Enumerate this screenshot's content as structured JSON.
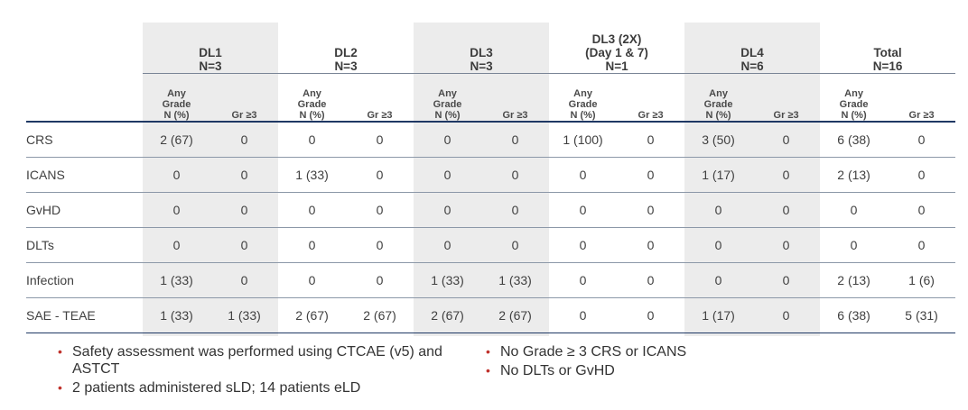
{
  "groups": [
    {
      "lines": [
        "DL1",
        "N=3"
      ]
    },
    {
      "lines": [
        "DL2",
        "N=3"
      ]
    },
    {
      "lines": [
        "DL3",
        "N=3"
      ]
    },
    {
      "lines": [
        "DL3 (2X)",
        "(Day 1 & 7)",
        "N=1"
      ]
    },
    {
      "lines": [
        "DL4",
        "N=6"
      ]
    },
    {
      "lines": [
        "Total",
        "N=16"
      ]
    }
  ],
  "subheaders": {
    "any_grade_lines": [
      "Any",
      "Grade",
      "N (%)"
    ],
    "gr3": "Gr ≥3"
  },
  "rows": [
    {
      "label": "CRS",
      "cells": [
        "2 (67)",
        "0",
        "0",
        "0",
        "0",
        "0",
        "1 (100)",
        "0",
        "3 (50)",
        "0",
        "6 (38)",
        "0"
      ]
    },
    {
      "label": "ICANS",
      "cells": [
        "0",
        "0",
        "1 (33)",
        "0",
        "0",
        "0",
        "0",
        "0",
        "1 (17)",
        "0",
        "2 (13)",
        "0"
      ]
    },
    {
      "label": "GvHD",
      "cells": [
        "0",
        "0",
        "0",
        "0",
        "0",
        "0",
        "0",
        "0",
        "0",
        "0",
        "0",
        "0"
      ]
    },
    {
      "label": "DLTs",
      "cells": [
        "0",
        "0",
        "0",
        "0",
        "0",
        "0",
        "0",
        "0",
        "0",
        "0",
        "0",
        "0"
      ]
    },
    {
      "label": "Infection",
      "cells": [
        "1 (33)",
        "0",
        "0",
        "0",
        "1 (33)",
        "1 (33)",
        "0",
        "0",
        "0",
        "0",
        "2 (13)",
        "1 (6)"
      ]
    },
    {
      "label": "SAE - TEAE",
      "cells": [
        "1 (33)",
        "1 (33)",
        "2 (67)",
        "2 (67)",
        "2 (67)",
        "2 (67)",
        "0",
        "0",
        "1 (17)",
        "0",
        "6 (38)",
        "5 (31)"
      ]
    }
  ],
  "notes_left": [
    "Safety assessment was performed using CTCAE (v5) and ASTCT",
    "2 patients administered sLD; 14 patients eLD"
  ],
  "notes_right": [
    "No Grade ≥ 3 CRS or ICANS",
    "No DLTs or GvHD"
  ],
  "colors": {
    "shade": "#ececec",
    "header_rule": "#1f3864",
    "bullet": "#c0322c"
  }
}
